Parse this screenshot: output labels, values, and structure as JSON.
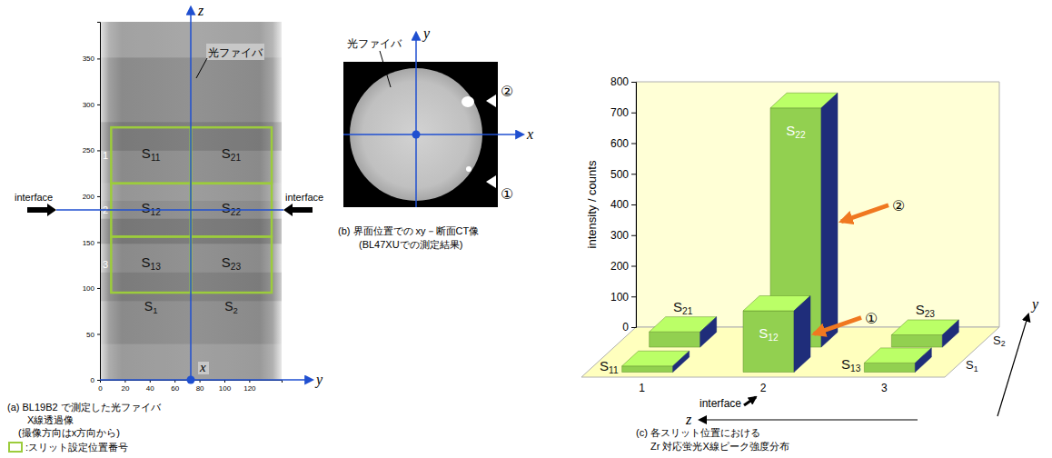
{
  "panel_a": {
    "caption_lines": [
      "(a)  BL19B2 で測定した光ファイバ",
      "X線透過像",
      "(撮像方向はx方向から)"
    ],
    "legend_label": ":スリット設定位置番号",
    "fiber_label": "光ファイバ",
    "interface_label": "interface",
    "axis_names": {
      "z": "z",
      "y": "y",
      "x": "x"
    },
    "xlim": [
      0,
      146
    ],
    "xticks": [
      0,
      20,
      40,
      60,
      80,
      100,
      120
    ],
    "ylim": [
      0,
      390
    ],
    "yticks": [
      0,
      50,
      100,
      150,
      200,
      250,
      300,
      350
    ],
    "slit_row_labels": [
      "1",
      "2",
      "3"
    ],
    "slit_column_labels": [
      "S1",
      "S2"
    ],
    "slit_labels": [
      [
        "S11",
        "S12",
        "S13"
      ],
      [
        "S21",
        "S22",
        "S23"
      ]
    ],
    "slit_y_edges": [
      9,
      73,
      138
    ],
    "slit_z_edges": [
      275,
      214,
      156,
      95
    ]
  },
  "panel_b": {
    "caption_lines": [
      "(b) 界面位置での xy－断面CT像",
      "(BL47XUでの測定結果)"
    ],
    "fiber_label": "光ファイバ",
    "axis_names": {
      "x": "x",
      "y": "y"
    },
    "markers": [
      "②",
      "①"
    ]
  },
  "chart_data": {
    "type": "bar",
    "caption_lines": [
      "(c) 各スリット位置における",
      "Zr 対応蛍光X線ピーク強度分布"
    ],
    "y_label": "intensity / counts",
    "x_label": "z",
    "depth_label": "y",
    "categories": [
      "1",
      "2",
      "3"
    ],
    "series": [
      {
        "name": "S1",
        "color": "#92d050",
        "labels": [
          "S11",
          "S12",
          "S13"
        ],
        "values": [
          20,
          200,
          30
        ]
      },
      {
        "name": "S2",
        "color": "#92d050",
        "labels": [
          "S21",
          "S22",
          "S23"
        ],
        "values": [
          50,
          780,
          40
        ]
      }
    ],
    "ylim": [
      0,
      800
    ],
    "yticks": [
      0,
      100,
      200,
      300,
      400,
      500,
      600,
      700,
      800
    ],
    "annotations": [
      {
        "text": "interface",
        "category": "2"
      },
      {
        "text": "②",
        "label": "S22"
      },
      {
        "text": "①",
        "label": "S12"
      }
    ]
  }
}
